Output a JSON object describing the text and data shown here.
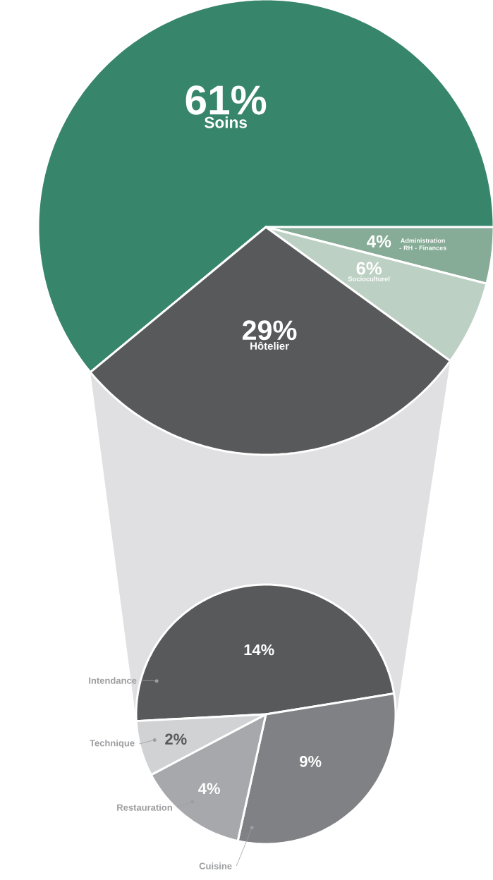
{
  "chart_data": [
    {
      "type": "pie",
      "categories": [
        "Soins",
        "Administration - RH - Finances",
        "Socioculturel",
        "Hôtelier"
      ],
      "values": [
        61,
        4,
        6,
        29
      ],
      "colors": [
        "#37856a",
        "#86ab96",
        "#bdd0c4",
        "#58595b"
      ],
      "value_labels": [
        "61%",
        "4%",
        "6%",
        "29%"
      ]
    },
    {
      "type": "pie",
      "categories": [
        "Intendance",
        "Cuisine",
        "Restauration",
        "Technique"
      ],
      "values": [
        14,
        9,
        4,
        2
      ],
      "colors": [
        "#58595b",
        "#808184",
        "#a7a8ab",
        "#d1d2d4"
      ],
      "value_labels": [
        "14%",
        "9%",
        "4%",
        "2%"
      ]
    }
  ]
}
